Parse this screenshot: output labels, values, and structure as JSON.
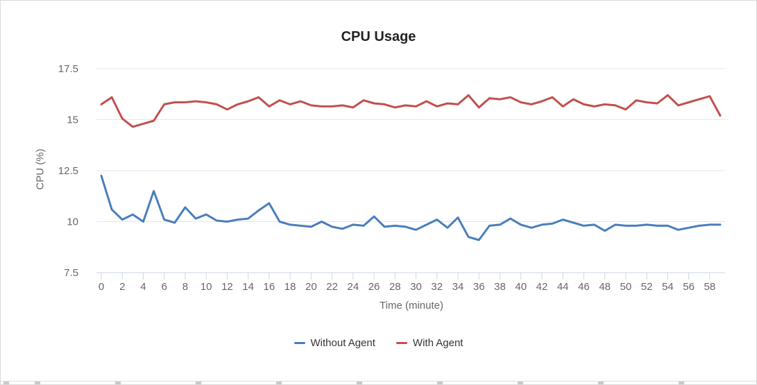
{
  "chart": {
    "title": "CPU Usage",
    "x_axis_title": "Time (minute)",
    "y_axis_title": "CPU (%)"
  },
  "chart_data": {
    "type": "line",
    "title": "CPU Usage",
    "xlabel": "Time (minute)",
    "ylabel": "CPU (%)",
    "x": [
      0,
      1,
      2,
      3,
      4,
      5,
      6,
      7,
      8,
      9,
      10,
      11,
      12,
      13,
      14,
      15,
      16,
      17,
      18,
      19,
      20,
      21,
      22,
      23,
      24,
      25,
      26,
      27,
      28,
      29,
      30,
      31,
      32,
      33,
      34,
      35,
      36,
      37,
      38,
      39,
      40,
      41,
      42,
      43,
      44,
      45,
      46,
      47,
      48,
      49,
      50,
      51,
      52,
      53,
      54,
      55,
      56,
      57,
      58,
      59
    ],
    "series": [
      {
        "name": "Without Agent",
        "color": "#4a7ebb",
        "values": [
          12.25,
          10.6,
          10.1,
          10.35,
          10.0,
          11.5,
          10.1,
          9.95,
          10.7,
          10.15,
          10.35,
          10.05,
          10.0,
          10.1,
          10.15,
          10.55,
          10.9,
          10.0,
          9.85,
          9.8,
          9.75,
          10.0,
          9.75,
          9.65,
          9.85,
          9.8,
          10.25,
          9.75,
          9.8,
          9.75,
          9.6,
          9.85,
          10.1,
          9.7,
          10.2,
          9.25,
          9.1,
          9.8,
          9.85,
          10.15,
          9.85,
          9.7,
          9.85,
          9.9,
          10.1,
          9.95,
          9.8,
          9.85,
          9.55,
          9.85,
          9.8,
          9.8,
          9.85,
          9.8,
          9.8,
          9.6,
          9.7,
          9.8,
          9.85,
          9.85
        ]
      },
      {
        "name": "With Agent",
        "color": "#c0504d",
        "values": [
          15.75,
          16.1,
          15.05,
          14.65,
          14.8,
          14.95,
          15.75,
          15.85,
          15.85,
          15.9,
          15.85,
          15.75,
          15.5,
          15.75,
          15.9,
          16.1,
          15.65,
          15.95,
          15.75,
          15.9,
          15.7,
          15.65,
          15.65,
          15.7,
          15.6,
          15.95,
          15.8,
          15.75,
          15.6,
          15.7,
          15.65,
          15.9,
          15.65,
          15.8,
          15.75,
          16.2,
          15.6,
          16.05,
          16.0,
          16.1,
          15.85,
          15.75,
          15.9,
          16.1,
          15.65,
          16.0,
          15.75,
          15.65,
          15.75,
          15.7,
          15.5,
          15.95,
          15.85,
          15.8,
          16.2,
          15.7,
          15.85,
          16.0,
          16.15,
          15.2
        ]
      }
    ],
    "ylim": [
      7.5,
      17.5
    ],
    "yticks": [
      17.5,
      15,
      12.5,
      10,
      7.5
    ],
    "xticks": [
      0,
      2,
      4,
      6,
      8,
      10,
      12,
      14,
      16,
      18,
      20,
      22,
      24,
      26,
      28,
      30,
      32,
      34,
      36,
      38,
      40,
      42,
      44,
      46,
      48,
      50,
      52,
      54,
      56,
      58
    ],
    "grid": "horizontal",
    "legend_position": "bottom",
    "colors": {
      "gridline": "#e6e6e6",
      "axis_line": "#ccd6eb",
      "tick_mark": "#ccd6eb",
      "tick_label": "#666666",
      "title": "#222222",
      "legend_text": "#333333"
    }
  }
}
